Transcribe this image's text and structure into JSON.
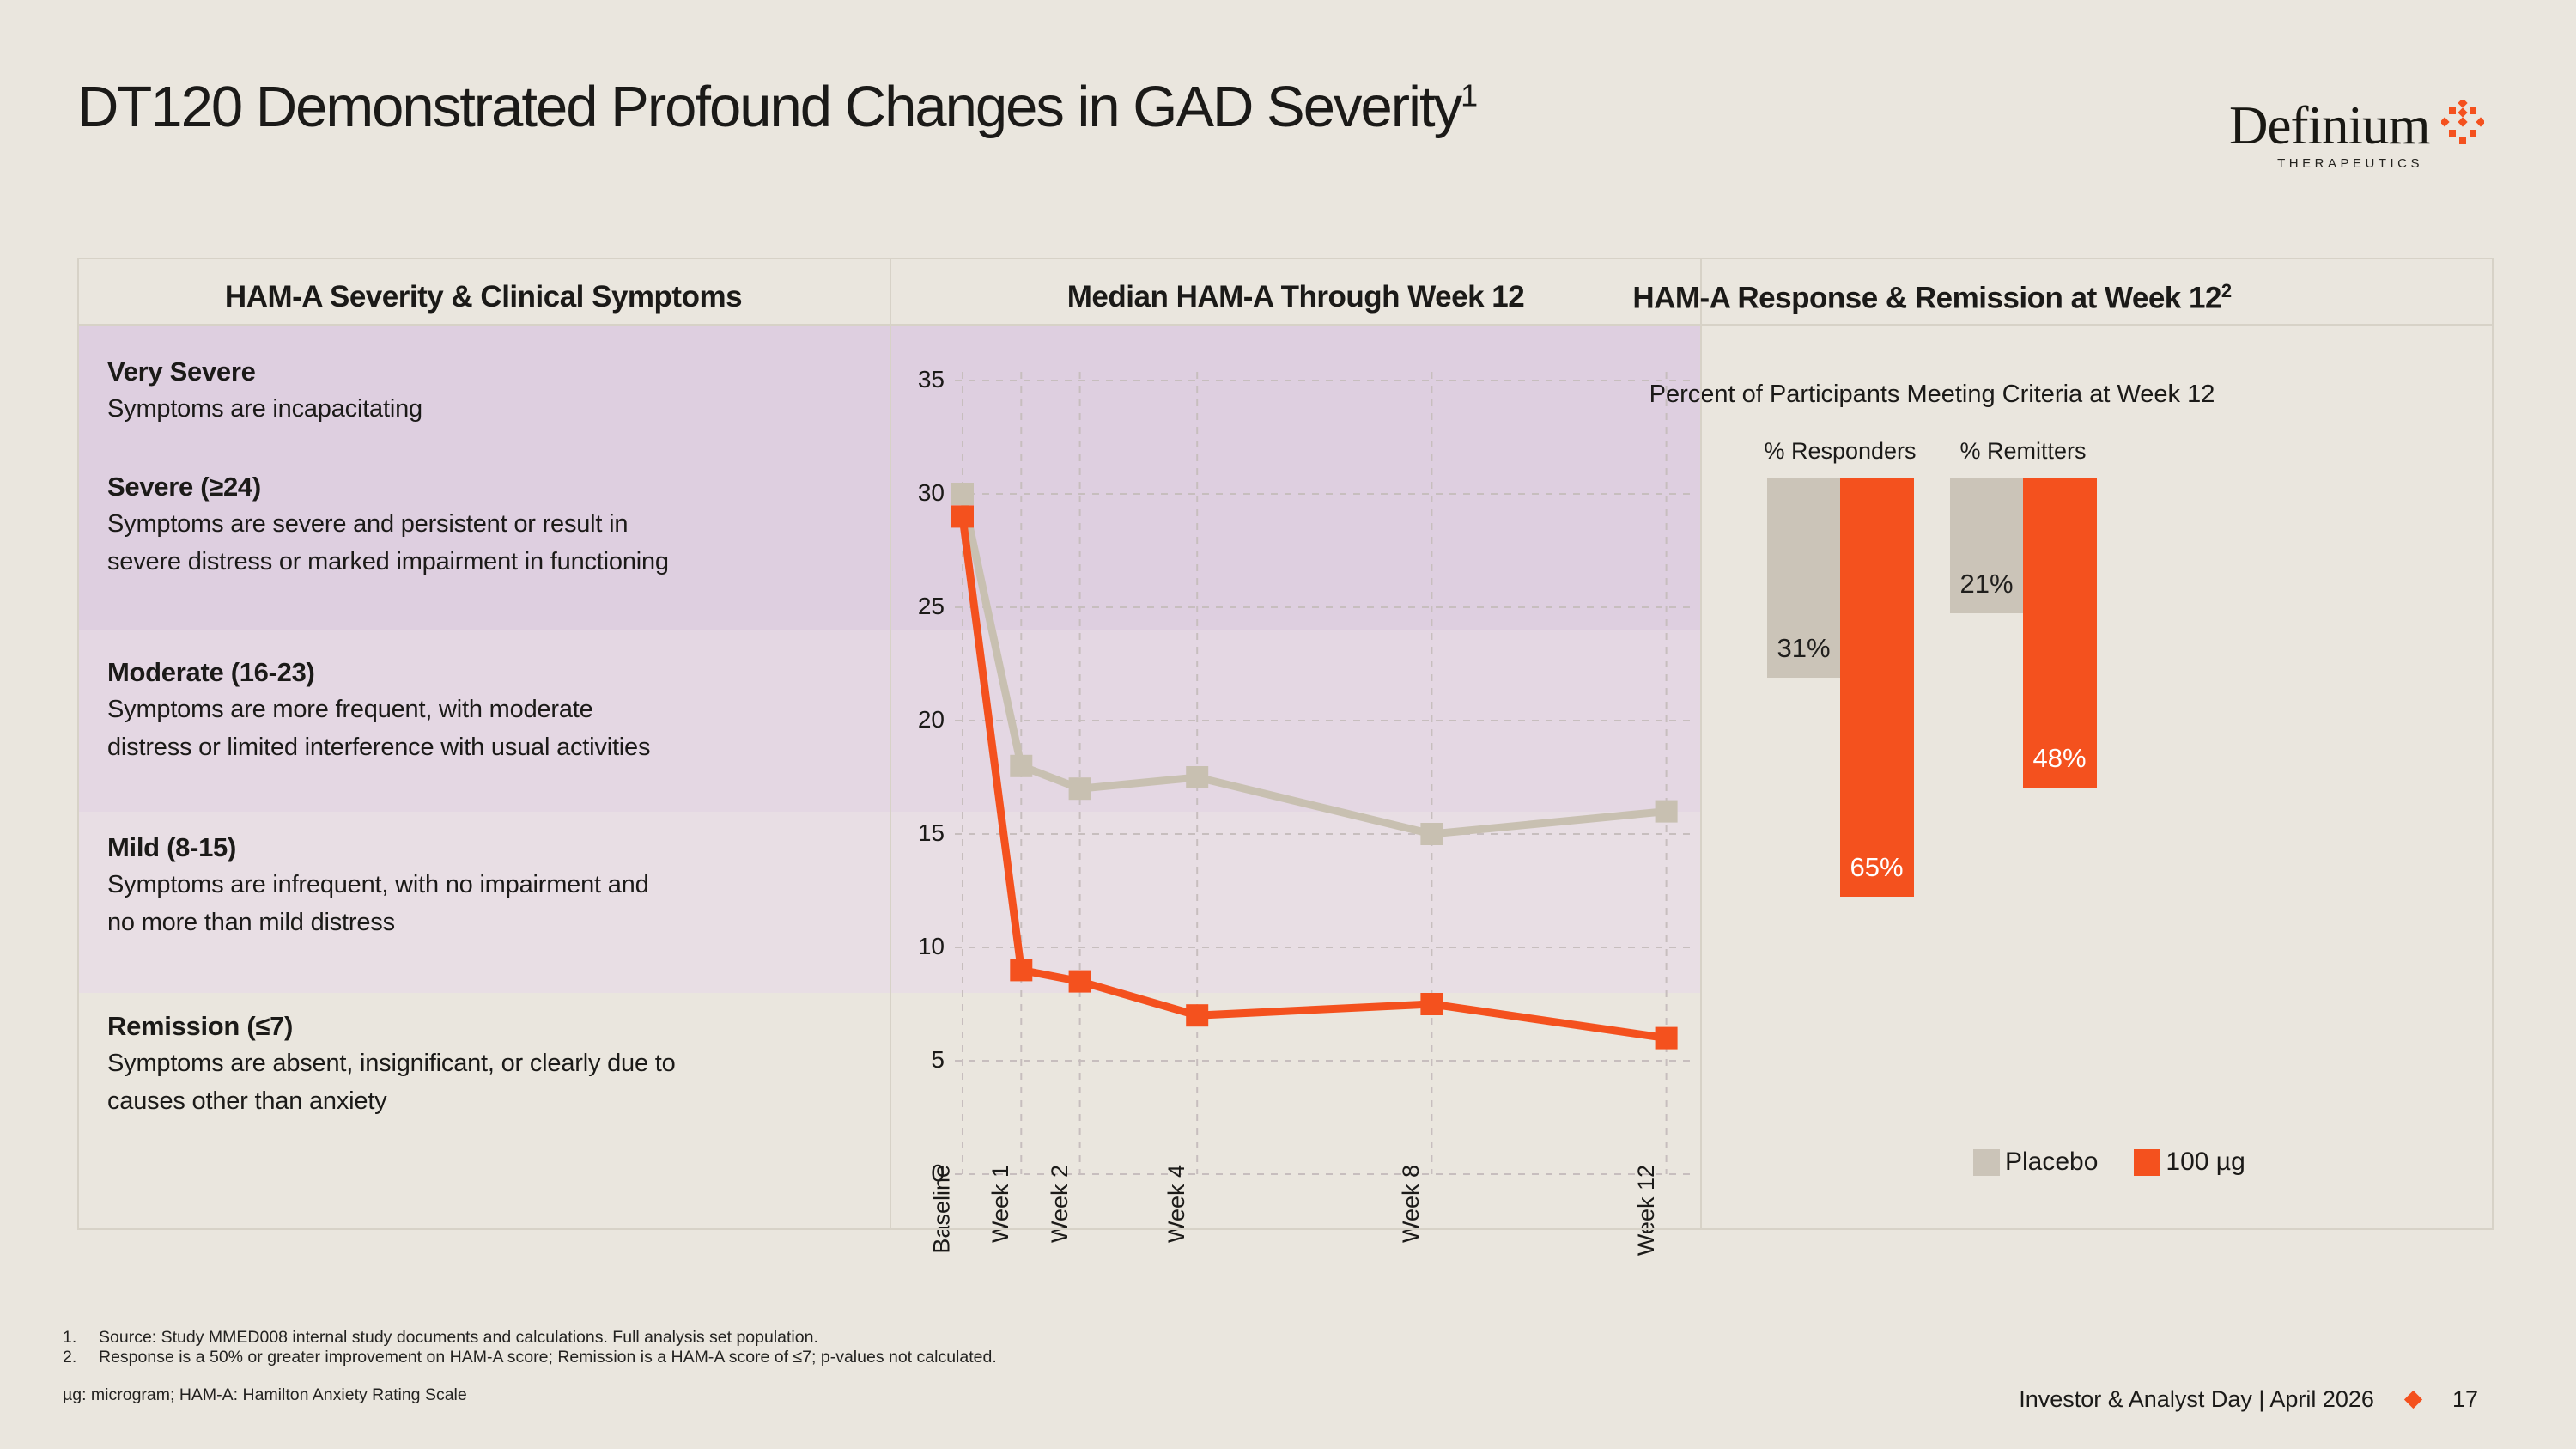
{
  "slide": {
    "title": "DT120 Demonstrated Profound Changes in GAD Severity",
    "title_sup": "1",
    "logo": {
      "wordmark": "Definium",
      "tagline": "THERAPEUTICS"
    },
    "footnotes": [
      {
        "num": "1.",
        "text": "Source: Study MMED008 internal study documents and calculations. Full analysis set population."
      },
      {
        "num": "2.",
        "text": "Response is a 50% or greater improvement on HAM-A score; Remission is a HAM-A score of ≤7; p-values not calculated."
      }
    ],
    "abbreviations": "µg: microgram; HAM-A: Hamilton Anxiety Rating Scale",
    "footer": {
      "event": "Investor & Analyst Day | April 2026",
      "page": "17"
    }
  },
  "colors": {
    "accent_orange": "#F4511E",
    "placebo_gray": "#CBC4B8",
    "page_bg": "#EAE6DE",
    "band_severe": "#DECFE0",
    "band_moderate": "#E4D7E3",
    "band_mild": "#E8DEE4"
  },
  "severity_panel": {
    "header": "HAM-A Severity & Clinical Symptoms",
    "rows": [
      {
        "title": "Very Severe",
        "desc": "Symptoms are incapacitating"
      },
      {
        "title": "Severe (≥24)",
        "desc": "Symptoms are severe and persistent or result in\nsevere distress or marked impairment in functioning"
      },
      {
        "title": "Moderate (16-23)",
        "desc": "Symptoms are more frequent, with moderate\ndistress or limited interference with usual activities"
      },
      {
        "title": "Mild (8-15)",
        "desc": "Symptoms are infrequent, with no impairment and\nno more than mild distress"
      },
      {
        "title": "Remission (≤7)",
        "desc": "Symptoms are absent, insignificant, or clearly due to\ncauses other than anxiety"
      }
    ]
  },
  "chart_data": [
    {
      "type": "line",
      "title": "Median HAM-A Through Week 12",
      "x_weeks": [
        0,
        1,
        2,
        4,
        8,
        12
      ],
      "x_labels": [
        "Baseline",
        "Week 1",
        "Week 2",
        "Week 4",
        "Week 8",
        "Week 12"
      ],
      "ylim": [
        0,
        35
      ],
      "yticks": [
        0,
        5,
        10,
        15,
        20,
        25,
        30,
        35
      ],
      "grid": "dashed",
      "series": [
        {
          "name": "Placebo",
          "color": "#C8C0B1",
          "values": [
            30,
            18,
            17,
            17.5,
            15,
            16
          ]
        },
        {
          "name": "100 µg",
          "color": "#F4511E",
          "values": [
            29,
            9,
            8.5,
            7,
            7.5,
            6
          ]
        }
      ],
      "bands": [
        {
          "label": "severe",
          "from": 24,
          "to": 35,
          "color": "#DECFE0"
        },
        {
          "label": "moderate",
          "from": 16,
          "to": 24,
          "color": "#E4D7E3"
        },
        {
          "label": "mild",
          "from": 8,
          "to": 16,
          "color": "#E8DEE4"
        },
        {
          "label": "remission",
          "from": 0,
          "to": 8,
          "color": "#EAE6DE"
        }
      ]
    },
    {
      "type": "bar",
      "orientation": "hanging",
      "title": "HAM-A Response & Remission at Week 12",
      "title_sup": "2",
      "subtitle": "Percent of Participants Meeting Criteria at Week 12",
      "groups": [
        "% Responders",
        "% Remitters"
      ],
      "series": [
        {
          "name": "Placebo",
          "color": "#CBC4B8",
          "values": [
            31,
            21
          ]
        },
        {
          "name": "100 µg",
          "color": "#F4511E",
          "values": [
            65,
            48
          ]
        }
      ],
      "value_labels": [
        [
          "31%",
          "21%"
        ],
        [
          "65%",
          "48%"
        ]
      ],
      "legend_position": "bottom"
    }
  ]
}
